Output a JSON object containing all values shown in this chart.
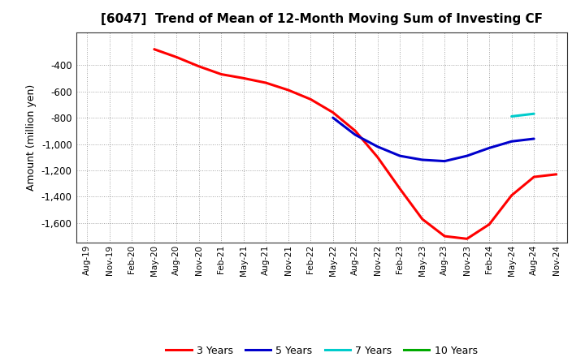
{
  "title": "[6047]  Trend of Mean of 12-Month Moving Sum of Investing CF",
  "ylabel": "Amount (million yen)",
  "background_color": "#ffffff",
  "plot_bg_color": "#ffffff",
  "grid_color": "#999999",
  "ylim": [
    -1750,
    -150
  ],
  "yticks": [
    -1600,
    -1400,
    -1200,
    -1000,
    -800,
    -600,
    -400
  ],
  "x_labels": [
    "Aug-19",
    "Nov-19",
    "Feb-20",
    "May-20",
    "Aug-20",
    "Nov-20",
    "Feb-21",
    "May-21",
    "Aug-21",
    "Nov-21",
    "Feb-22",
    "May-22",
    "Aug-22",
    "Nov-22",
    "Feb-23",
    "May-23",
    "Aug-23",
    "Nov-23",
    "Feb-24",
    "May-24",
    "Aug-24",
    "Nov-24"
  ],
  "series_3y": {
    "color": "#ff0000",
    "label": "3 Years",
    "x": [
      3,
      4,
      5,
      6,
      7,
      8,
      9,
      10,
      11,
      12,
      13,
      14,
      15,
      16,
      17,
      18,
      19,
      20,
      21
    ],
    "y": [
      -280,
      -340,
      -410,
      -470,
      -500,
      -535,
      -590,
      -660,
      -760,
      -900,
      -1100,
      -1340,
      -1570,
      -1700,
      -1720,
      -1610,
      -1390,
      -1250,
      -1230
    ]
  },
  "series_5y": {
    "color": "#0000cc",
    "label": "5 Years",
    "x": [
      11,
      12,
      13,
      14,
      15,
      16,
      17,
      18,
      19,
      20
    ],
    "y": [
      -800,
      -930,
      -1020,
      -1090,
      -1120,
      -1130,
      -1090,
      -1030,
      -980,
      -960
    ]
  },
  "series_7y": {
    "color": "#00cccc",
    "label": "7 Years",
    "x": [
      19,
      20
    ],
    "y": [
      -790,
      -770
    ]
  },
  "series_10y": {
    "color": "#00aa00",
    "label": "10 Years",
    "x": [],
    "y": []
  },
  "legend_items": [
    {
      "label": "3 Years",
      "color": "#ff0000"
    },
    {
      "label": "5 Years",
      "color": "#0000cc"
    },
    {
      "label": "7 Years",
      "color": "#00cccc"
    },
    {
      "label": "10 Years",
      "color": "#00aa00"
    }
  ]
}
